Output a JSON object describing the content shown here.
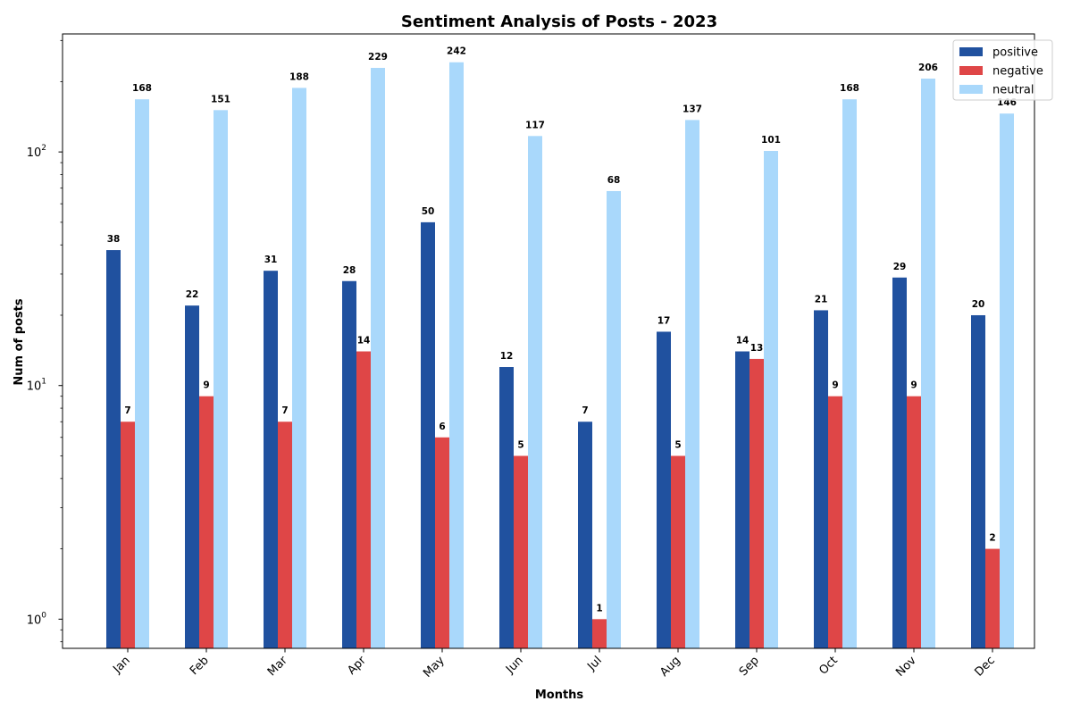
{
  "chart_data": {
    "type": "bar",
    "title": "Sentiment Analysis of Posts - 2023",
    "xlabel": "Months",
    "ylabel": "Num of posts",
    "yscale": "log",
    "ylim": [
      0.75,
      320
    ],
    "yticks": [
      {
        "value": 1,
        "base": "10",
        "exp": "0"
      },
      {
        "value": 10,
        "base": "10",
        "exp": "1"
      },
      {
        "value": 100,
        "base": "10",
        "exp": "2"
      }
    ],
    "categories": [
      "Jan",
      "Feb",
      "Mar",
      "Apr",
      "May",
      "Jun",
      "Jul",
      "Aug",
      "Sep",
      "Oct",
      "Nov",
      "Dec"
    ],
    "series": [
      {
        "name": "positive",
        "color": "#20519f",
        "values": [
          38,
          22,
          31,
          28,
          50,
          12,
          7,
          17,
          14,
          21,
          29,
          20
        ]
      },
      {
        "name": "negative",
        "color": "#df4647",
        "values": [
          7,
          9,
          7,
          14,
          6,
          5,
          1,
          5,
          13,
          9,
          9,
          2
        ]
      },
      {
        "name": "neutral",
        "color": "#a9d8fb",
        "values": [
          168,
          151,
          188,
          229,
          242,
          117,
          68,
          137,
          101,
          168,
          206,
          146
        ]
      }
    ],
    "legend": {
      "position": "top-right"
    },
    "grid": false,
    "data_labels": true
  }
}
